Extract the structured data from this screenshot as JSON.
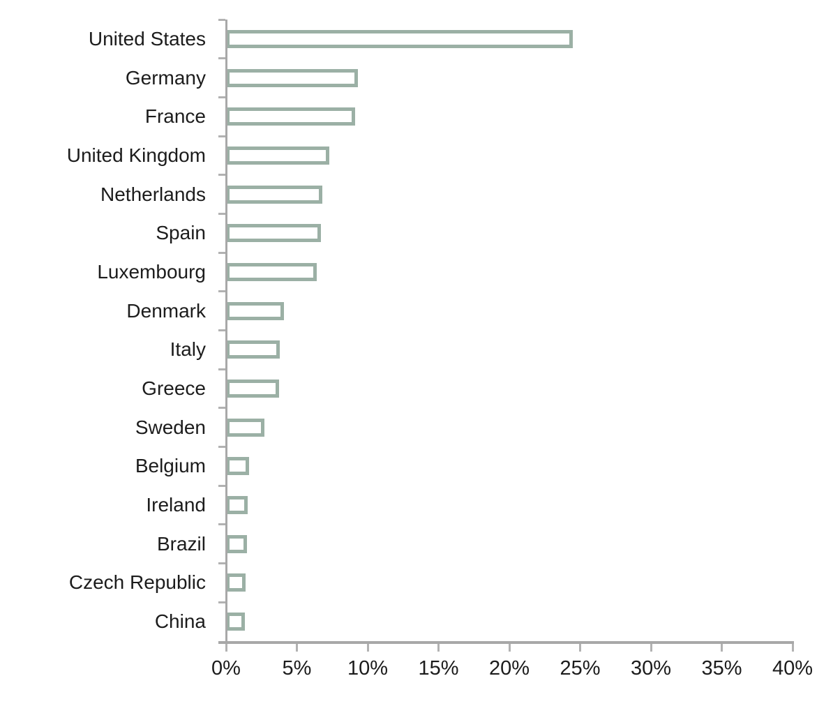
{
  "chart_data": {
    "type": "bar",
    "orientation": "horizontal",
    "title": "",
    "xlabel": "",
    "ylabel": "",
    "categories": [
      "United States",
      "Germany",
      "France",
      "United Kingdom",
      "Netherlands",
      "Spain",
      "Luxembourg",
      "Denmark",
      "Italy",
      "Greece",
      "Sweden",
      "Belgium",
      "Ireland",
      "Brazil",
      "Czech Republic",
      "China"
    ],
    "values": [
      24.5,
      9.3,
      9.1,
      7.3,
      6.8,
      6.7,
      6.4,
      4.1,
      3.8,
      3.75,
      2.7,
      1.65,
      1.55,
      1.5,
      1.4,
      1.35
    ],
    "value_unit": "%",
    "xlim": [
      0,
      40
    ],
    "x_tick_values": [
      0,
      5,
      10,
      15,
      20,
      25,
      30,
      35,
      40
    ],
    "x_tick_labels": [
      "0%",
      "5%",
      "10%",
      "15%",
      "20%",
      "25%",
      "30%",
      "35%",
      "40%"
    ],
    "grid": false,
    "legend": "none",
    "colors": {
      "bar_fill": "#ffffff",
      "bar_border": "#9bb0a5",
      "axis": "#a8a8a8",
      "tick": "#b2b2b2",
      "text": "#1c1c1c",
      "background": "#ffffff"
    }
  }
}
